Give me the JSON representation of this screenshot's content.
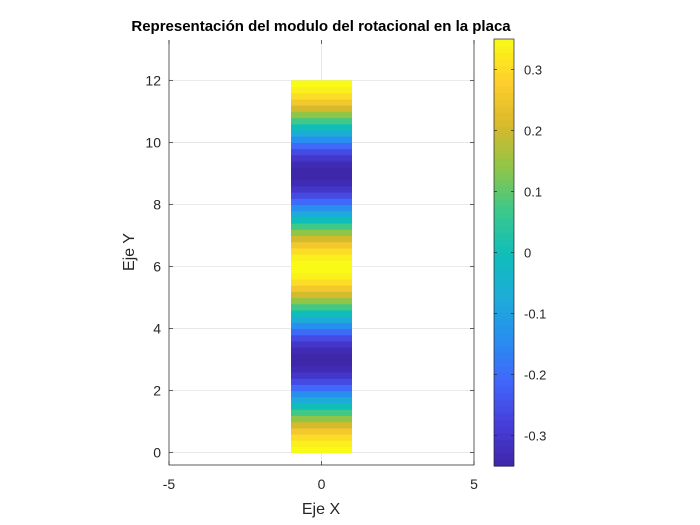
{
  "chart_data": {
    "type": "heatmap",
    "title": "Representación del modulo del rotacional en la placa",
    "xlabel": "Eje X",
    "ylabel": "Eje Y",
    "xlim": [
      -5,
      5
    ],
    "ylim": [
      -0.4,
      13.3
    ],
    "xticks": [
      "-5",
      "0",
      "5"
    ],
    "yticks": [
      "0",
      "2",
      "4",
      "6",
      "8",
      "10",
      "12"
    ],
    "grid": true,
    "plate": {
      "x": [
        -1,
        1
      ],
      "y": [
        0,
        12
      ]
    },
    "field": "0.35*cos(2*pi*y/6)",
    "amplitude": 0.35,
    "period": 6,
    "colorbar": {
      "colormap": "parula",
      "range": [
        -0.35,
        0.35
      ],
      "ticks": [
        "-0.3",
        "-0.2",
        "-0.1",
        "0",
        "0.1",
        "0.2",
        "0.3"
      ],
      "position": "right"
    }
  }
}
